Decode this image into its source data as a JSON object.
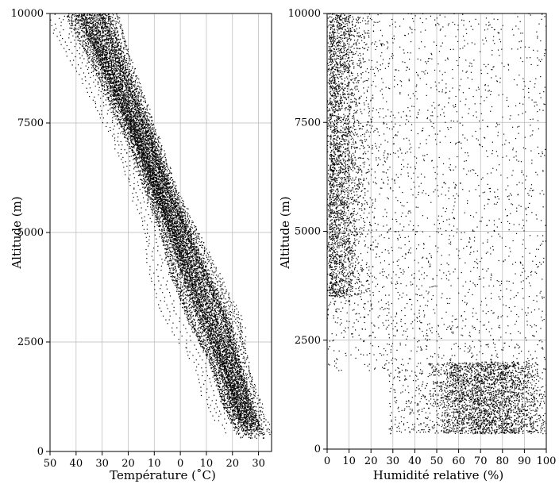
{
  "chart_data": [
    {
      "type": "scatter",
      "title": "",
      "xlabel": "Température (˚C)",
      "ylabel": "Altitude (m)",
      "xlim": [
        50,
        -35
      ],
      "x_reversed": true,
      "ylim": [
        0,
        10000
      ],
      "grid": true,
      "legend": "none",
      "marker_color": "#000000",
      "xticks": [
        50,
        40,
        30,
        20,
        10,
        0,
        -10,
        -20,
        -30
      ],
      "xtick_labels": [
        "50",
        "40",
        "30",
        "20",
        "10",
        "0",
        "10",
        "20",
        "30"
      ],
      "yticks": [
        0,
        2500,
        5000,
        7500,
        10000
      ],
      "ytick_labels": [
        "0",
        "2500",
        "5000",
        "7500",
        "10000"
      ],
      "profiles": {
        "altitude_nodes": [
          350,
          1000,
          2000,
          3000,
          4000,
          5000,
          6000,
          7000,
          8000,
          9000,
          10000
        ],
        "cluster_center_temperature": [
          -28,
          -23,
          -18,
          -12,
          -5,
          1,
          8,
          14,
          21,
          28,
          35
        ],
        "cluster_spread": [
          3,
          3.5,
          3.5,
          5,
          4.5,
          3.5,
          3,
          3,
          3.5,
          4,
          5
        ],
        "profile_count": 120
      }
    },
    {
      "type": "scatter",
      "title": "",
      "xlabel": "Humidité relative (%)",
      "ylabel": "Altitude (m)",
      "xlim": [
        0,
        100
      ],
      "ylim": [
        0,
        10000
      ],
      "grid": true,
      "legend": "none",
      "marker_color": "#000000",
      "xticks": [
        0,
        10,
        20,
        30,
        40,
        50,
        60,
        70,
        80,
        90,
        100
      ],
      "xtick_labels": [
        "0",
        "10",
        "20",
        "30",
        "40",
        "50",
        "60",
        "70",
        "80",
        "90",
        "100"
      ],
      "yticks": [
        0,
        2500,
        5000,
        7500,
        10000
      ],
      "ytick_labels": [
        "0",
        "2500",
        "5000",
        "7500",
        "10000"
      ],
      "density": {
        "dry_band_rh": [
          1,
          12
        ],
        "dry_band_altitude": [
          3500,
          10000
        ],
        "humid_core_rh": [
          55,
          90
        ],
        "humid_core_altitude": [
          350,
          2000
        ],
        "min_altitude": 350
      }
    }
  ]
}
